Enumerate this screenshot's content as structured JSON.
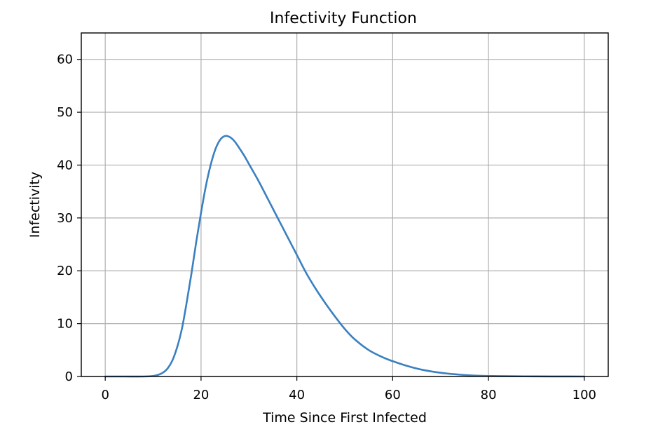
{
  "chart_data": {
    "type": "line",
    "title": "Infectivity Function",
    "xlabel": "Time Since First Infected",
    "ylabel": "Infectivity",
    "xlim": [
      -5,
      105
    ],
    "ylim": [
      0,
      65
    ],
    "xticks": [
      0,
      20,
      40,
      60,
      80,
      100
    ],
    "yticks": [
      0,
      10,
      20,
      30,
      40,
      50,
      60
    ],
    "grid": true,
    "legend": "none",
    "series": [
      {
        "color": "#3a80c0",
        "x": [
          0,
          4,
          8,
          10,
          11,
          12,
          13,
          14,
          15,
          16,
          17,
          18,
          19,
          20,
          21,
          22,
          23,
          24,
          25,
          26,
          27,
          28,
          29,
          30,
          32,
          34,
          36,
          38,
          40,
          42,
          44,
          46,
          48,
          50,
          52,
          55,
          58,
          60,
          63,
          66,
          70,
          74,
          78,
          82,
          86,
          90,
          95,
          100
        ],
        "y": [
          0,
          0,
          0,
          0.1,
          0.3,
          0.7,
          1.5,
          3,
          5.5,
          9,
          14,
          19.5,
          25.5,
          31,
          36,
          40,
          43,
          44.8,
          45.5,
          45.3,
          44.5,
          43.2,
          41.8,
          40.2,
          37,
          33.5,
          30,
          26.5,
          23,
          19.5,
          16.5,
          13.8,
          11.3,
          9,
          7.1,
          5,
          3.6,
          2.9,
          2,
          1.3,
          0.7,
          0.35,
          0.15,
          0.08,
          0.04,
          0.02,
          0.01,
          0
        ]
      }
    ]
  }
}
